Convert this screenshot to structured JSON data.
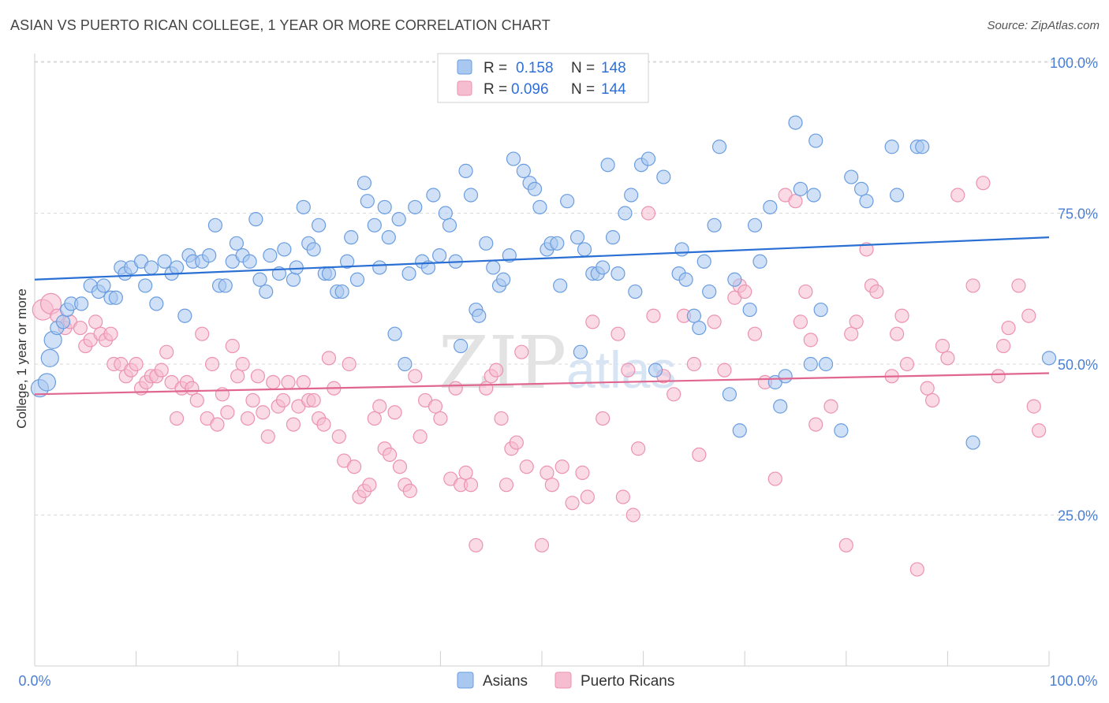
{
  "title": "ASIAN VS PUERTO RICAN COLLEGE, 1 YEAR OR MORE CORRELATION CHART",
  "source": "Source: ZipAtlas.com",
  "watermark": {
    "zip": "ZIP",
    "atlas": "atlas"
  },
  "colors": {
    "asian_fill": "#a9c8f0",
    "asian_stroke": "#6a9de0",
    "asian_line": "#2a6fd4",
    "pr_fill": "#f6bcd0",
    "pr_stroke": "#ec92b2",
    "pr_line": "#e0668f",
    "axis_label": "#4a7fd4",
    "grid": "#d8d8d8"
  },
  "legend_top": {
    "rows": [
      {
        "r_label": "R =",
        "r_value": "0.158",
        "n_label": "N =",
        "n_value": "148"
      },
      {
        "r_label": "R =",
        "r_value": "0.096",
        "n_label": "N =",
        "n_value": "144"
      }
    ]
  },
  "chart_data": {
    "type": "scatter",
    "xlabel": "",
    "ylabel": "College, 1 year or more",
    "xlim": [
      0,
      100
    ],
    "ylim": [
      0,
      100
    ],
    "x_tick_labels": [
      "0.0%",
      "100.0%"
    ],
    "y_tick_labels": [
      {
        "value": 100,
        "label": "100.0%"
      },
      {
        "value": 75,
        "label": "75.0%"
      },
      {
        "value": 50,
        "label": "50.0%"
      },
      {
        "value": 25,
        "label": "25.0%"
      }
    ],
    "grid": true,
    "legend_position": "bottom-center",
    "series": [
      {
        "name": "Asians",
        "trend": {
          "x0": 0,
          "y0": 64,
          "x1": 100,
          "y1": 71
        },
        "points": [
          [
            0.5,
            46
          ],
          [
            1.2,
            47
          ],
          [
            1.5,
            51
          ],
          [
            1.8,
            54
          ],
          [
            2.2,
            56
          ],
          [
            2.8,
            57
          ],
          [
            3.2,
            59
          ],
          [
            3.6,
            60
          ],
          [
            4.6,
            60
          ],
          [
            5.5,
            63
          ],
          [
            6.3,
            62
          ],
          [
            6.8,
            63
          ],
          [
            7.5,
            61
          ],
          [
            8.0,
            61
          ],
          [
            8.5,
            66
          ],
          [
            8.9,
            65
          ],
          [
            9.5,
            66
          ],
          [
            10.5,
            67
          ],
          [
            10.9,
            63
          ],
          [
            11.5,
            66
          ],
          [
            12.0,
            60
          ],
          [
            12.8,
            67
          ],
          [
            13.5,
            65
          ],
          [
            14,
            66
          ],
          [
            14.8,
            58
          ],
          [
            15.2,
            68
          ],
          [
            15.6,
            67
          ],
          [
            16.5,
            67
          ],
          [
            17.2,
            68
          ],
          [
            17.8,
            73
          ],
          [
            18.2,
            63
          ],
          [
            18.8,
            63
          ],
          [
            19.5,
            67
          ],
          [
            19.9,
            70
          ],
          [
            20.5,
            68
          ],
          [
            21.2,
            67
          ],
          [
            21.8,
            74
          ],
          [
            22.2,
            64
          ],
          [
            22.8,
            62
          ],
          [
            23.2,
            68
          ],
          [
            24.1,
            65
          ],
          [
            24.6,
            69
          ],
          [
            25.5,
            64
          ],
          [
            25.8,
            66
          ],
          [
            26.5,
            76
          ],
          [
            27.0,
            70
          ],
          [
            27.5,
            69
          ],
          [
            28.0,
            73
          ],
          [
            28.6,
            65
          ],
          [
            29.0,
            65
          ],
          [
            29.8,
            62
          ],
          [
            30.3,
            62
          ],
          [
            30.8,
            67
          ],
          [
            31.2,
            71
          ],
          [
            31.8,
            64
          ],
          [
            32.5,
            80
          ],
          [
            32.8,
            77
          ],
          [
            33.5,
            73
          ],
          [
            34.0,
            66
          ],
          [
            34.5,
            76
          ],
          [
            34.9,
            71
          ],
          [
            35.5,
            55
          ],
          [
            35.9,
            74
          ],
          [
            36.5,
            50
          ],
          [
            36.9,
            65
          ],
          [
            37.5,
            76
          ],
          [
            38.2,
            67
          ],
          [
            38.8,
            66
          ],
          [
            39.3,
            78
          ],
          [
            39.9,
            68
          ],
          [
            40.5,
            75
          ],
          [
            40.9,
            73
          ],
          [
            41.5,
            67
          ],
          [
            42.0,
            53
          ],
          [
            42.5,
            82
          ],
          [
            43.0,
            78
          ],
          [
            43.5,
            59
          ],
          [
            43.8,
            58
          ],
          [
            44.5,
            70
          ],
          [
            45.2,
            66
          ],
          [
            45.8,
            63
          ],
          [
            46.2,
            64
          ],
          [
            46.8,
            68
          ],
          [
            47.2,
            84
          ],
          [
            48.2,
            82
          ],
          [
            48.8,
            80
          ],
          [
            49.3,
            79
          ],
          [
            49.8,
            76
          ],
          [
            50.5,
            69
          ],
          [
            50.9,
            70
          ],
          [
            51.5,
            70
          ],
          [
            51.8,
            63
          ],
          [
            52.5,
            77
          ],
          [
            53.5,
            71
          ],
          [
            53.8,
            52
          ],
          [
            54.2,
            69
          ],
          [
            55.0,
            65
          ],
          [
            55.5,
            65
          ],
          [
            56.0,
            66
          ],
          [
            56.5,
            83
          ],
          [
            57.0,
            71
          ],
          [
            57.5,
            65
          ],
          [
            58.2,
            75
          ],
          [
            58.8,
            78
          ],
          [
            59.2,
            62
          ],
          [
            59.8,
            83
          ],
          [
            60.5,
            84
          ],
          [
            61.2,
            49
          ],
          [
            62.0,
            81
          ],
          [
            63.5,
            65
          ],
          [
            63.8,
            69
          ],
          [
            64.2,
            64
          ],
          [
            65.0,
            58
          ],
          [
            65.5,
            56
          ],
          [
            66.0,
            67
          ],
          [
            66.5,
            62
          ],
          [
            67.0,
            73
          ],
          [
            67.5,
            86
          ],
          [
            68.5,
            45
          ],
          [
            69.0,
            64
          ],
          [
            69.5,
            39
          ],
          [
            70.5,
            59
          ],
          [
            71.0,
            73
          ],
          [
            71.5,
            67
          ],
          [
            72.5,
            76
          ],
          [
            73.0,
            47
          ],
          [
            73.5,
            43
          ],
          [
            74.0,
            48
          ],
          [
            75.0,
            90
          ],
          [
            75.5,
            79
          ],
          [
            76.5,
            50
          ],
          [
            76.8,
            78
          ],
          [
            77.0,
            87
          ],
          [
            77.5,
            59
          ],
          [
            78.0,
            50
          ],
          [
            79.5,
            39
          ],
          [
            80.5,
            81
          ],
          [
            81.5,
            79
          ],
          [
            82.0,
            77
          ],
          [
            84.5,
            86
          ],
          [
            85.0,
            78
          ],
          [
            87.0,
            86
          ],
          [
            87.5,
            86
          ],
          [
            92.5,
            37
          ],
          [
            100,
            51
          ]
        ]
      },
      {
        "name": "Puerto Ricans",
        "trend": {
          "x0": 0,
          "y0": 45,
          "x1": 100,
          "y1": 48.5
        },
        "points": [
          [
            0.8,
            59
          ],
          [
            1.6,
            60
          ],
          [
            2.2,
            58
          ],
          [
            3.0,
            56
          ],
          [
            3.5,
            57
          ],
          [
            4.5,
            56
          ],
          [
            5.0,
            53
          ],
          [
            5.5,
            54
          ],
          [
            6.0,
            57
          ],
          [
            6.5,
            55
          ],
          [
            7.0,
            54
          ],
          [
            7.5,
            55
          ],
          [
            7.8,
            50
          ],
          [
            8.5,
            50
          ],
          [
            9.0,
            48
          ],
          [
            9.5,
            49
          ],
          [
            10.0,
            50
          ],
          [
            10.5,
            46
          ],
          [
            11.0,
            47
          ],
          [
            11.5,
            48
          ],
          [
            12.0,
            48
          ],
          [
            12.5,
            49
          ],
          [
            13.0,
            52
          ],
          [
            13.5,
            47
          ],
          [
            14.0,
            41
          ],
          [
            14.5,
            46
          ],
          [
            15.0,
            47
          ],
          [
            15.5,
            46
          ],
          [
            16.0,
            44
          ],
          [
            16.5,
            55
          ],
          [
            17.0,
            41
          ],
          [
            17.5,
            50
          ],
          [
            18.0,
            40
          ],
          [
            18.5,
            45
          ],
          [
            19.0,
            42
          ],
          [
            19.5,
            53
          ],
          [
            20.0,
            48
          ],
          [
            20.5,
            50
          ],
          [
            21.0,
            41
          ],
          [
            21.5,
            44
          ],
          [
            22.0,
            48
          ],
          [
            22.5,
            42
          ],
          [
            23.0,
            38
          ],
          [
            23.5,
            47
          ],
          [
            24.0,
            43
          ],
          [
            24.5,
            44
          ],
          [
            25.0,
            47
          ],
          [
            25.5,
            40
          ],
          [
            26.0,
            43
          ],
          [
            26.5,
            47
          ],
          [
            27.0,
            44
          ],
          [
            27.5,
            44
          ],
          [
            28.0,
            41
          ],
          [
            28.5,
            40
          ],
          [
            29.0,
            51
          ],
          [
            29.5,
            46
          ],
          [
            30.0,
            38
          ],
          [
            30.5,
            34
          ],
          [
            31.0,
            50
          ],
          [
            31.5,
            33
          ],
          [
            32.0,
            28
          ],
          [
            32.5,
            29
          ],
          [
            33.0,
            30
          ],
          [
            33.5,
            41
          ],
          [
            34.0,
            43
          ],
          [
            34.5,
            36
          ],
          [
            35.0,
            35
          ],
          [
            35.5,
            42
          ],
          [
            36.0,
            33
          ],
          [
            36.5,
            30
          ],
          [
            37.0,
            29
          ],
          [
            37.5,
            48
          ],
          [
            38.0,
            38
          ],
          [
            38.5,
            44
          ],
          [
            39.5,
            43
          ],
          [
            40.0,
            41
          ],
          [
            41.0,
            31
          ],
          [
            41.5,
            46
          ],
          [
            42.0,
            30
          ],
          [
            42.5,
            32
          ],
          [
            43.0,
            30
          ],
          [
            43.5,
            20
          ],
          [
            44.5,
            46
          ],
          [
            45.0,
            48
          ],
          [
            45.5,
            49
          ],
          [
            46.0,
            41
          ],
          [
            46.5,
            30
          ],
          [
            47.0,
            36
          ],
          [
            47.5,
            37
          ],
          [
            48.0,
            52
          ],
          [
            48.5,
            33
          ],
          [
            50.0,
            20
          ],
          [
            50.5,
            32
          ],
          [
            51.0,
            30
          ],
          [
            52.0,
            33
          ],
          [
            53.0,
            27
          ],
          [
            54.0,
            32
          ],
          [
            54.5,
            28
          ],
          [
            55.0,
            57
          ],
          [
            56.0,
            41
          ],
          [
            57.5,
            55
          ],
          [
            58.0,
            28
          ],
          [
            58.5,
            49
          ],
          [
            59.0,
            25
          ],
          [
            59.5,
            36
          ],
          [
            60.5,
            75
          ],
          [
            61.0,
            58
          ],
          [
            62.0,
            48
          ],
          [
            63.0,
            45
          ],
          [
            64.0,
            58
          ],
          [
            65.0,
            50
          ],
          [
            65.5,
            35
          ],
          [
            67.0,
            57
          ],
          [
            68.0,
            49
          ],
          [
            69.0,
            61
          ],
          [
            69.5,
            63
          ],
          [
            70.0,
            62
          ],
          [
            71.0,
            55
          ],
          [
            72.0,
            47
          ],
          [
            73.0,
            31
          ],
          [
            74.0,
            78
          ],
          [
            75.0,
            77
          ],
          [
            75.5,
            57
          ],
          [
            76.0,
            62
          ],
          [
            76.5,
            54
          ],
          [
            77.0,
            40
          ],
          [
            78.5,
            43
          ],
          [
            80.0,
            20
          ],
          [
            80.5,
            55
          ],
          [
            81.0,
            57
          ],
          [
            82.0,
            69
          ],
          [
            82.5,
            63
          ],
          [
            83.0,
            62
          ],
          [
            84.5,
            48
          ],
          [
            85.0,
            55
          ],
          [
            85.5,
            58
          ],
          [
            86.0,
            50
          ],
          [
            87.0,
            16
          ],
          [
            88.0,
            46
          ],
          [
            88.5,
            44
          ],
          [
            89.5,
            53
          ],
          [
            90.0,
            51
          ],
          [
            91.0,
            78
          ],
          [
            92.5,
            63
          ],
          [
            93.5,
            80
          ],
          [
            95.0,
            48
          ],
          [
            95.5,
            53
          ],
          [
            96.0,
            56
          ],
          [
            97.0,
            63
          ],
          [
            98.0,
            58
          ],
          [
            98.5,
            43
          ],
          [
            99.0,
            39
          ]
        ]
      }
    ]
  },
  "legend_bottom": {
    "items": [
      "Asians",
      "Puerto Ricans"
    ]
  }
}
